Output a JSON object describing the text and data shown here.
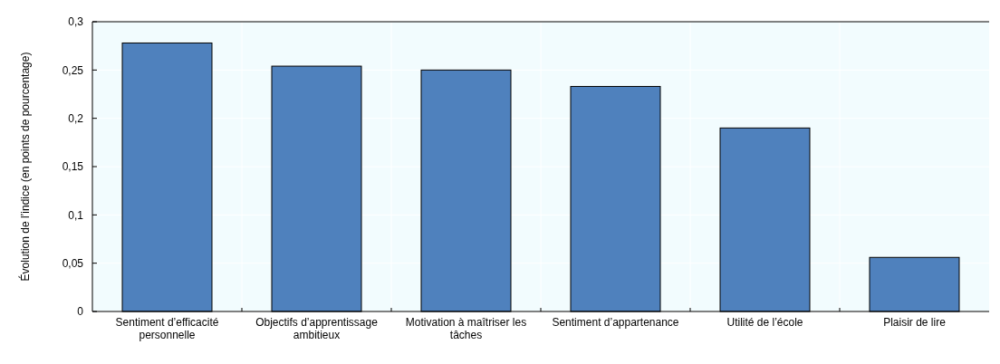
{
  "chart_data": {
    "type": "bar",
    "ylabel": "Évolution de l’indice (en points de pourcentage)",
    "categories": [
      "Sentiment d’efficacité personnelle",
      "Objectifs d’apprentissage ambitieux",
      "Motivation à maîtriser les tâches",
      "Sentiment d’appartenance",
      "Utilité de l’école",
      "Plaisir de lire"
    ],
    "values": [
      0.278,
      0.254,
      0.25,
      0.233,
      0.19,
      0.056
    ],
    "color": "#4f81bd",
    "ylim": [
      0,
      0.3
    ],
    "yticks": [
      0,
      {
        "value": 0.05,
        "label": "0,05"
      },
      {
        "value": 0.1,
        "label": "0,1"
      },
      {
        "value": 0.15,
        "label": "0,15"
      },
      {
        "value": 0.2,
        "label": "0,2"
      },
      {
        "value": 0.25,
        "label": "0,25"
      },
      {
        "value": 0.3,
        "label": "0,3"
      }
    ],
    "grid": true
  }
}
